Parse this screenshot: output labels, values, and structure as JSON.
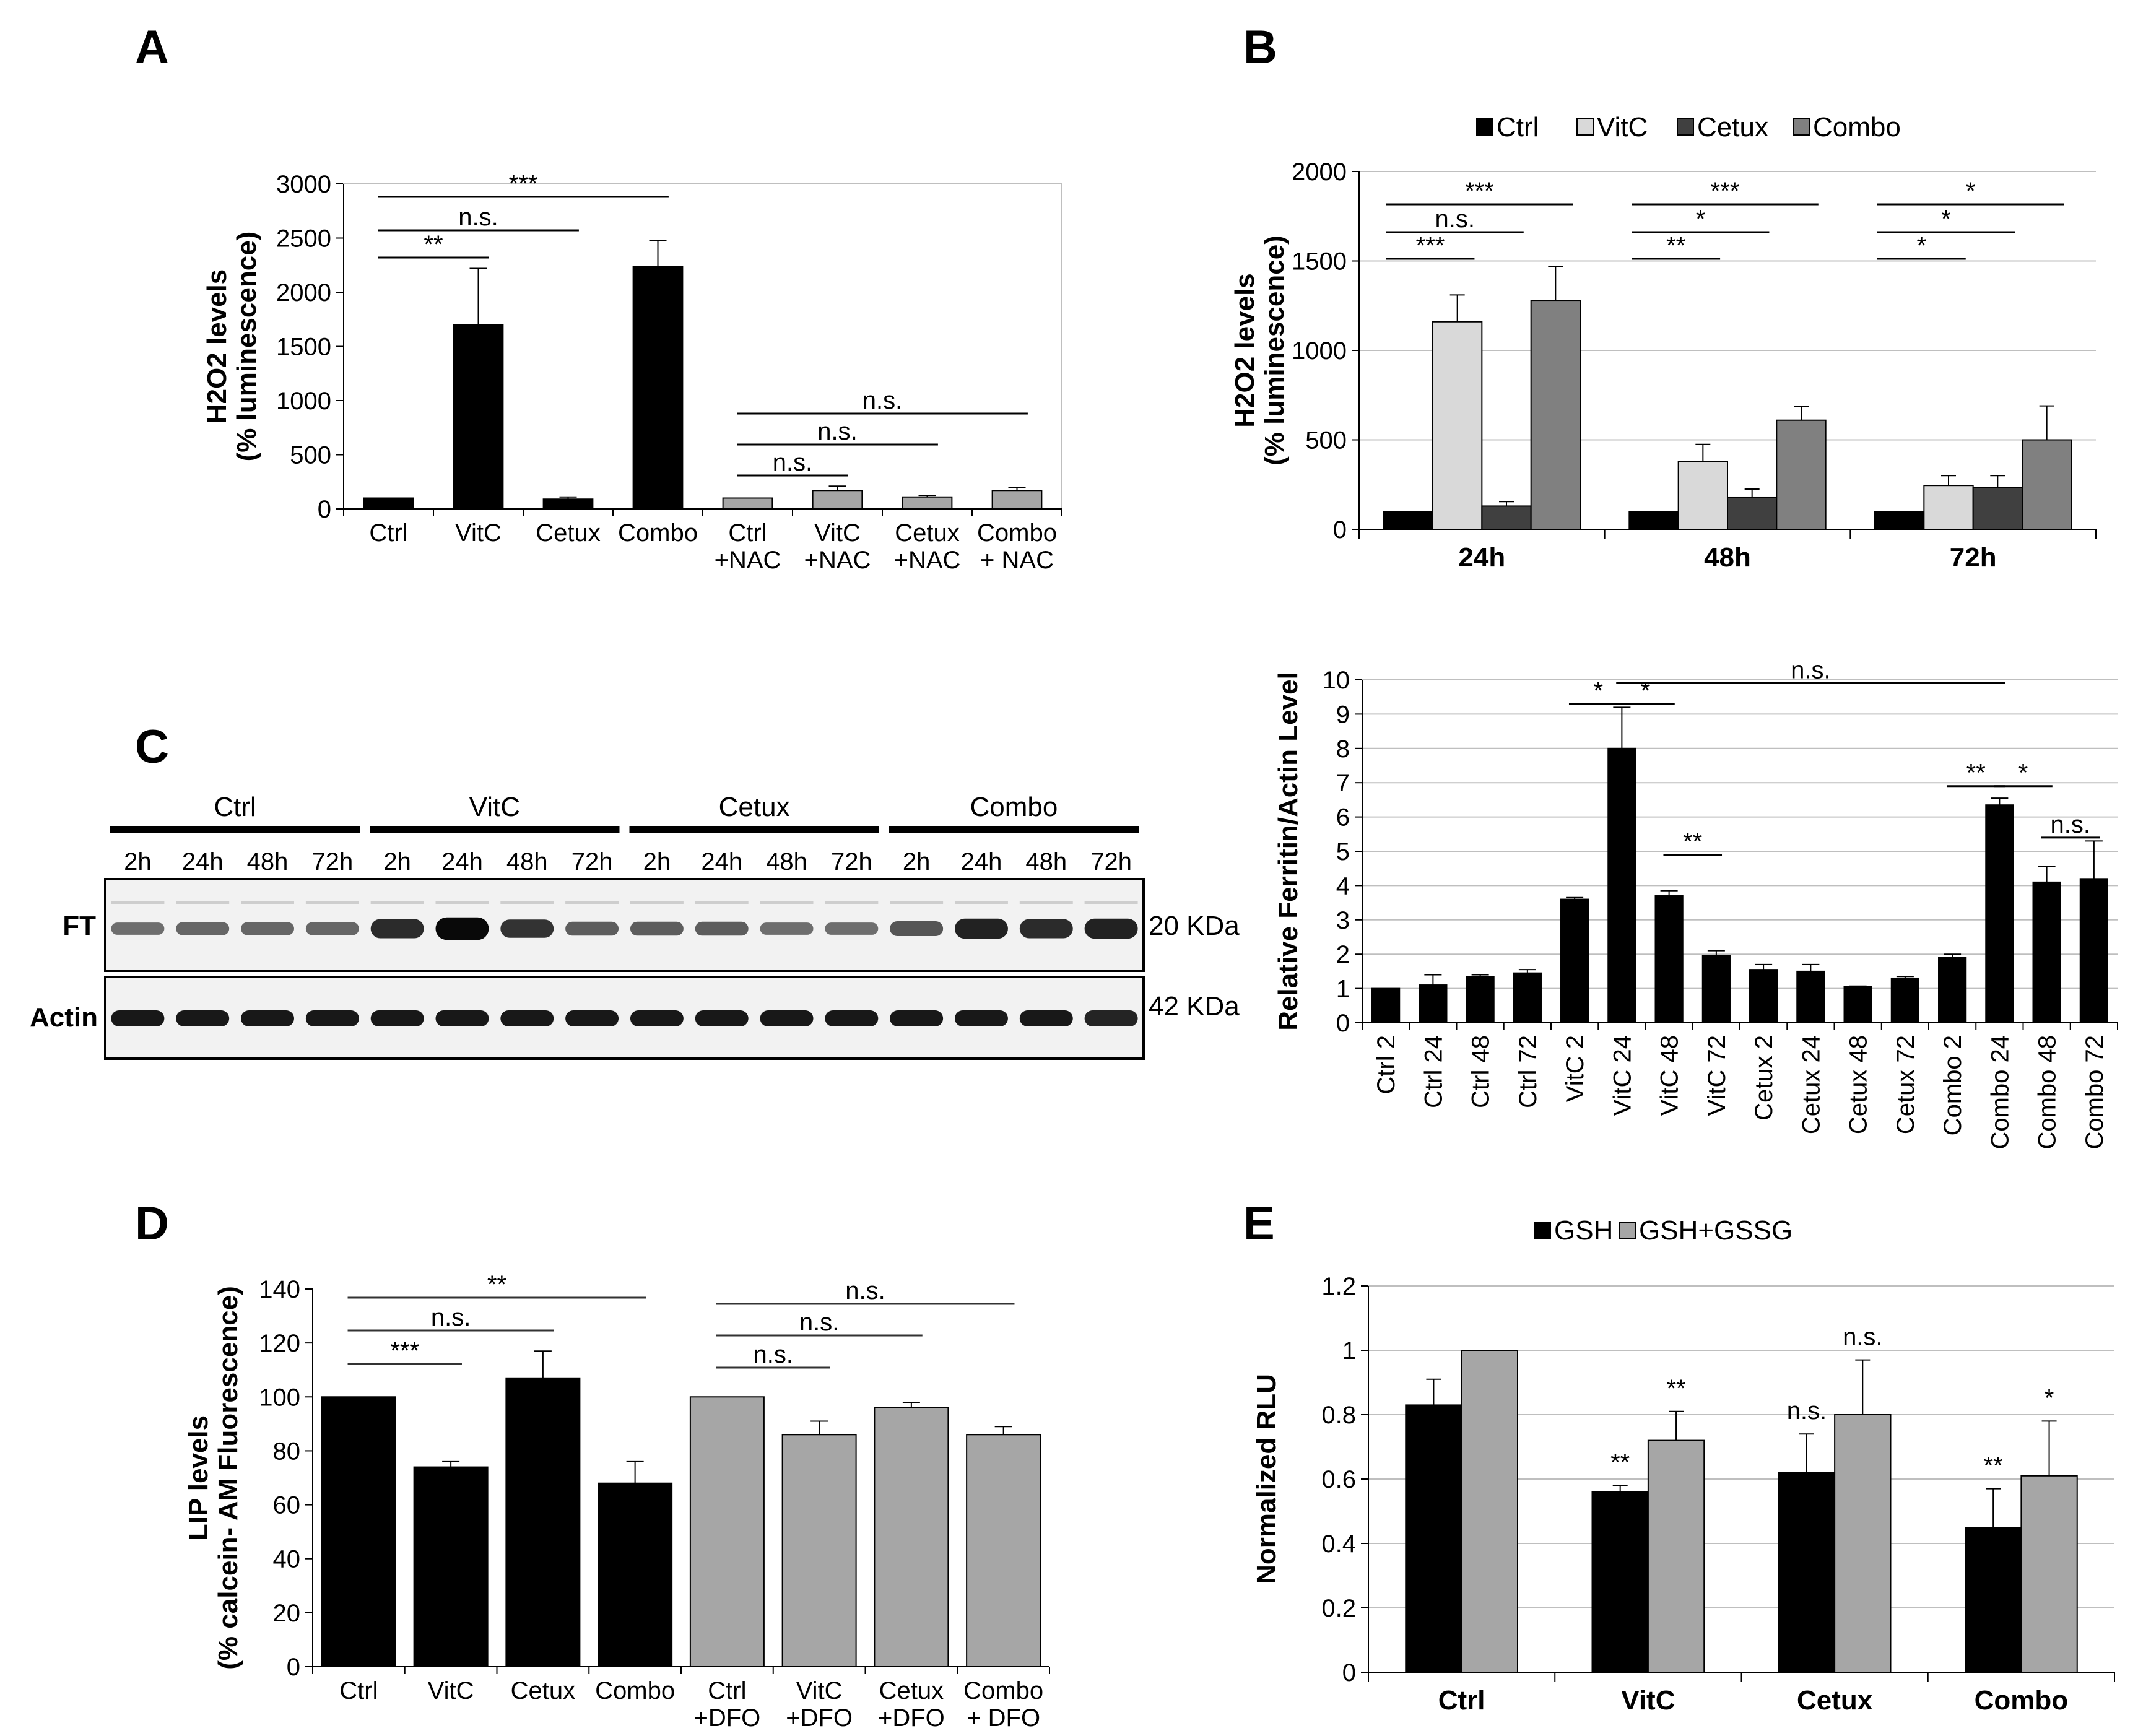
{
  "figure": {
    "panel_letters": [
      "A",
      "B",
      "C",
      "D",
      "E"
    ]
  },
  "chart_data": [
    {
      "id": "A",
      "type": "bar",
      "ylabel": [
        "H2O2 levels",
        "(% luminescence)"
      ],
      "ylim": [
        0,
        3000
      ],
      "yticks": [
        0,
        500,
        1000,
        1500,
        2000,
        2500,
        3000
      ],
      "categories": [
        [
          "Ctrl"
        ],
        [
          "VitC"
        ],
        [
          "Cetux"
        ],
        [
          "Combo"
        ],
        [
          "Ctrl",
          "+NAC"
        ],
        [
          "VitC",
          "+NAC"
        ],
        [
          "Cetux",
          "+NAC"
        ],
        [
          "Combo",
          "+ NAC"
        ]
      ],
      "values": [
        100,
        1700,
        90,
        2240,
        100,
        170,
        110,
        170
      ],
      "errors": [
        0,
        520,
        20,
        240,
        0,
        40,
        15,
        30
      ],
      "colors": [
        "#000000",
        "#000000",
        "#000000",
        "#000000",
        "#a6a6a6",
        "#a6a6a6",
        "#a6a6a6",
        "#a6a6a6"
      ],
      "significance": [
        {
          "from": 0,
          "to": 3,
          "label": "***"
        },
        {
          "from": 0,
          "to": 2,
          "label": "n.s."
        },
        {
          "from": 0,
          "to": 1,
          "label": "**"
        },
        {
          "from": 4,
          "to": 7,
          "label": "n.s."
        },
        {
          "from": 4,
          "to": 6,
          "label": "n.s."
        },
        {
          "from": 4,
          "to": 5,
          "label": "n.s."
        }
      ]
    },
    {
      "id": "B",
      "type": "bar",
      "ylabel": [
        "H2O2 levels",
        "(% luminescence)"
      ],
      "ylim": [
        0,
        2000
      ],
      "yticks": [
        0,
        500,
        1000,
        1500,
        2000
      ],
      "groups": [
        "24h",
        "48h",
        "72h"
      ],
      "series": [
        {
          "name": "Ctrl",
          "color": "#000000",
          "values": [
            100,
            100,
            100
          ],
          "errors": [
            0,
            0,
            0
          ]
        },
        {
          "name": "VitC",
          "color": "#d9d9d9",
          "values": [
            1160,
            380,
            245
          ],
          "errors": [
            150,
            95,
            55
          ]
        },
        {
          "name": "Cetux",
          "color": "#404040",
          "values": [
            130,
            180,
            235
          ],
          "errors": [
            25,
            45,
            65
          ]
        },
        {
          "name": "Combo",
          "color": "#808080",
          "values": [
            1280,
            610,
            500
          ],
          "errors": [
            190,
            75,
            190
          ]
        }
      ],
      "significance": [
        {
          "group": 0,
          "to": 3,
          "label": "***"
        },
        {
          "group": 0,
          "to": 2,
          "label": "n.s."
        },
        {
          "group": 0,
          "to": 1,
          "label": "***"
        },
        {
          "group": 1,
          "to": 3,
          "label": "***"
        },
        {
          "group": 1,
          "to": 2,
          "label": "*"
        },
        {
          "group": 1,
          "to": 1,
          "label": "**"
        },
        {
          "group": 2,
          "to": 3,
          "label": "*"
        },
        {
          "group": 2,
          "to": 2,
          "label": "*"
        },
        {
          "group": 2,
          "to": 1,
          "label": "*"
        }
      ]
    },
    {
      "id": "C-western",
      "type": "table",
      "group_labels": [
        "Ctrl",
        "VitC",
        "Cetux",
        "Combo"
      ],
      "lane_labels": [
        "2h",
        "24h",
        "48h",
        "72h"
      ],
      "row_labels": [
        "FT",
        "Actin"
      ],
      "size_labels": [
        "20 KDa",
        "42 KDa"
      ],
      "ft_intensity": [
        0.35,
        0.4,
        0.4,
        0.4,
        0.75,
        0.95,
        0.7,
        0.45,
        0.45,
        0.45,
        0.35,
        0.35,
        0.5,
        0.8,
        0.75,
        0.8
      ],
      "actin_intensity": [
        0.9,
        0.9,
        0.9,
        0.9,
        0.9,
        0.9,
        0.9,
        0.9,
        0.9,
        0.9,
        0.9,
        0.9,
        0.9,
        0.9,
        0.9,
        0.85
      ]
    },
    {
      "id": "C-quant",
      "type": "bar",
      "ylabel": "Relative Ferritin/Actin Level",
      "ylim": [
        0,
        10
      ],
      "yticks": [
        0,
        1,
        2,
        3,
        4,
        5,
        6,
        7,
        8,
        9,
        10
      ],
      "categories": [
        "Ctrl 2",
        "Ctrl 24",
        "Ctrl 48",
        "Ctrl 72",
        "VitC 2",
        "VitC 24",
        "VitC 48",
        "VitC 72",
        "Cetux 2",
        "Cetux 24",
        "Cetux 48",
        "Cetux 72",
        "Combo 2",
        "Combo 24",
        "Combo 48",
        "Combo 72"
      ],
      "values": [
        1.0,
        1.1,
        1.35,
        1.45,
        3.6,
        8.0,
        3.7,
        1.95,
        1.55,
        1.5,
        1.05,
        1.3,
        1.9,
        6.35,
        4.1,
        4.2
      ],
      "errors": [
        0,
        0.3,
        0.05,
        0.1,
        0.05,
        1.2,
        0.15,
        0.15,
        0.15,
        0.2,
        0.02,
        0.05,
        0.1,
        0.2,
        0.45,
        1.1
      ],
      "significance": [
        {
          "from": 4,
          "to": 5,
          "y": 9.3,
          "label": "*"
        },
        {
          "from": 5,
          "to": 6,
          "y": 9.3,
          "label": "*"
        },
        {
          "from": 5,
          "to": 13,
          "y": 9.9,
          "label": "n.s."
        },
        {
          "from": 6,
          "to": 7,
          "y": 4.9,
          "label": "**"
        },
        {
          "from": 12,
          "to": 13,
          "y": 6.9,
          "label": "**"
        },
        {
          "from": 13,
          "to": 14,
          "y": 6.9,
          "label": "*"
        },
        {
          "from": 14,
          "to": 15,
          "y": 5.4,
          "label": "n.s."
        }
      ]
    },
    {
      "id": "D",
      "type": "bar",
      "ylabel": [
        "LIP levels",
        "(% calcein- AM Fluorescence)"
      ],
      "ylim": [
        0,
        140
      ],
      "yticks": [
        0,
        20,
        40,
        60,
        80,
        100,
        120,
        140
      ],
      "categories": [
        [
          "Ctrl"
        ],
        [
          "VitC"
        ],
        [
          "Cetux"
        ],
        [
          "Combo"
        ],
        [
          "Ctrl",
          "+DFO"
        ],
        [
          "VitC",
          "+DFO"
        ],
        [
          "Cetux",
          "+DFO"
        ],
        [
          "Combo",
          "+ DFO"
        ]
      ],
      "values": [
        100,
        74,
        107,
        68,
        100,
        86,
        96,
        86
      ],
      "errors": [
        0,
        2,
        10,
        8,
        0,
        5,
        2,
        3
      ],
      "colors": [
        "#000000",
        "#000000",
        "#000000",
        "#000000",
        "#a6a6a6",
        "#a6a6a6",
        "#a6a6a6",
        "#a6a6a6"
      ],
      "significance": [
        {
          "from": 0,
          "to": 3,
          "label": "**"
        },
        {
          "from": 0,
          "to": 2,
          "label": "n.s."
        },
        {
          "from": 0,
          "to": 1,
          "label": "***"
        },
        {
          "from": 4,
          "to": 7,
          "label": "n.s."
        },
        {
          "from": 4,
          "to": 6,
          "label": "n.s."
        },
        {
          "from": 4,
          "to": 5,
          "label": "n.s."
        }
      ]
    },
    {
      "id": "E",
      "type": "bar",
      "ylabel": "Normalized RLU",
      "ylim": [
        0,
        1.2
      ],
      "yticks": [
        "0",
        "0.2",
        "0.4",
        "0.6",
        "0.8",
        "1",
        "1.2"
      ],
      "groups": [
        "Ctrl",
        "VitC",
        "Cetux",
        "Combo"
      ],
      "series": [
        {
          "name": "GSH",
          "color": "#000000",
          "values": [
            0.83,
            0.56,
            0.62,
            0.45
          ],
          "errors": [
            0.08,
            0.02,
            0.12,
            0.12
          ],
          "stars": [
            "",
            "**",
            "n.s.",
            "**"
          ]
        },
        {
          "name": "GSH+GSSG",
          "color": "#a6a6a6",
          "values": [
            1.0,
            0.72,
            0.8,
            0.61
          ],
          "errors": [
            0,
            0.09,
            0.17,
            0.17
          ],
          "stars": [
            "",
            "**",
            "n.s.",
            "*"
          ]
        }
      ]
    }
  ]
}
